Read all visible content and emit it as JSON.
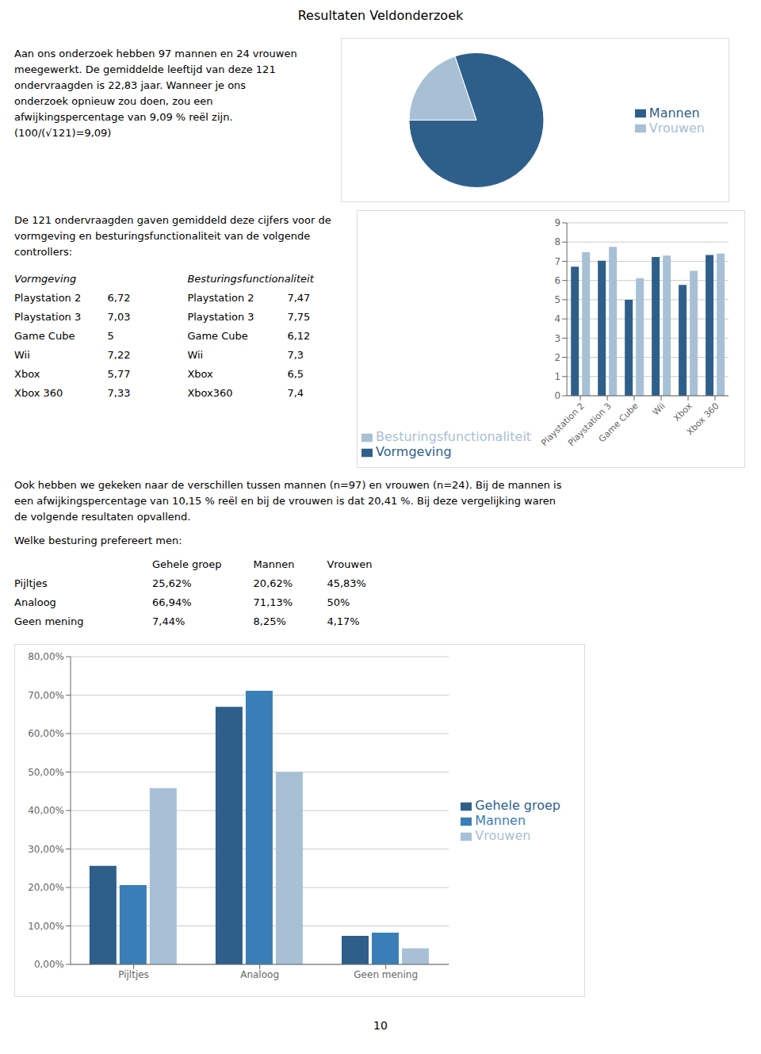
{
  "title": "Resultaten Veldonderzoek",
  "annotations": [
    "10"
  ],
  "chart_data": [
    {
      "type": "pie",
      "categories": [
        "Mannen",
        "Vrouwen"
      ],
      "values": [
        97,
        24
      ],
      "colors": [
        "#2E5F8A",
        "#A8C0D6"
      ],
      "legend": "right",
      "annotations": [
        {
          "lines": [
            "Aan ons onderzoek hebben 97 mannen en 24 vrouwen",
            "meegewerkt. De gemiddelde leeftijd van deze 121",
            "ondervraagden is 22,83 jaar. Wanneer je ons",
            "onderzoek opnieuw zou doen, zou een",
            "afwijkingspercentage van 9,09 % reël zijn.",
            "(100/(√121)=9,09)"
          ]
        }
      ]
    },
    {
      "type": "bar",
      "categories": [
        "Playstation 2",
        "Playstation 3",
        "Game Cube",
        "Wii",
        "Xbox",
        "Xbox 360"
      ],
      "series": [
        {
          "name": "Vormgeving",
          "color": "#2E5F8A",
          "values": [
            6.72,
            7.03,
            5.0,
            7.22,
            5.77,
            7.33
          ]
        },
        {
          "name": "Besturingsfunctionaliteit",
          "color": "#A8C0D6",
          "values": [
            7.47,
            7.75,
            6.12,
            7.3,
            6.5,
            7.4
          ]
        }
      ],
      "ylim": [
        0,
        9
      ],
      "yticks": [
        0,
        1,
        2,
        3,
        4,
        5,
        6,
        7,
        8,
        9
      ],
      "grid": true,
      "legend": "bottom",
      "annotations": [
        {
          "lines": [
            "De 121 ondervraagden gaven gemiddeld deze cijfers voor de",
            "vormgeving en besturingsfunctionaliteit van de volgende",
            "controllers:"
          ]
        },
        {
          "header": [
            "Vormgeving",
            "Besturingsfunctionaliteit"
          ],
          "rows": [
            [
              "Playstation 2",
              "6,72",
              "Playstation 2",
              "7,47"
            ],
            [
              "Playstation 3",
              "7,03",
              "Playstation 3",
              "7,75"
            ],
            [
              "Game Cube",
              "5",
              "Game Cube",
              "6,12"
            ],
            [
              "Wii",
              "7,22",
              "Wii",
              "7,3"
            ],
            [
              "Xbox",
              "5,77",
              "Xbox",
              "6,5"
            ],
            [
              "Xbox 360",
              "7,33",
              "Xbox360",
              "7,4"
            ]
          ]
        }
      ]
    },
    {
      "type": "bar",
      "categories": [
        "Pijltjes",
        "Analoog",
        "Geen mening"
      ],
      "series": [
        {
          "name": "Gehele groep",
          "color": "#2E5F8A",
          "values": [
            0.2562,
            0.6694,
            0.0744
          ]
        },
        {
          "name": "Mannen",
          "color": "#3A7EB8",
          "values": [
            0.2062,
            0.7113,
            0.0825
          ]
        },
        {
          "name": "Vrouwen",
          "color": "#A8C0D6",
          "values": [
            0.4583,
            0.5,
            0.0417
          ]
        }
      ],
      "ylim": [
        0,
        0.8
      ],
      "yticks": [
        {
          "value": 0,
          "label": "0,00%"
        },
        {
          "value": 0.1,
          "label": "10,00%"
        },
        {
          "value": 0.2,
          "label": "20,00%"
        },
        {
          "value": 0.3,
          "label": "30,00%"
        },
        {
          "value": 0.4,
          "label": "40,00%"
        },
        {
          "value": 0.5,
          "label": "50,00%"
        },
        {
          "value": 0.6,
          "label": "60,00%"
        },
        {
          "value": 0.7,
          "label": "70,00%"
        },
        {
          "value": 0.8,
          "label": "80,00%"
        }
      ],
      "grid": true,
      "legend": "right",
      "annotations": [
        {
          "lines": [
            "Ook hebben we gekeken naar de verschillen tussen mannen (n=97) en vrouwen (n=24). Bij de mannen is",
            "een afwijkingspercentage van 10,15 % reël en bij de vrouwen is dat 20,41 %. Bij deze vergelijking waren",
            "de volgende resultaten opvallend."
          ]
        },
        {
          "lines": [
            "Welke besturing prefereert men:"
          ]
        },
        {
          "header": [
            "Gehele groep",
            "Mannen",
            "Vrouwen"
          ],
          "rows": [
            [
              "Pijltjes",
              "25,62%",
              "20,62%",
              "45,83%"
            ],
            [
              "Analoog",
              "66,94%",
              "71,13%",
              "50%"
            ],
            [
              "Geen mening",
              "7,44%",
              "8,25%",
              "4,17%"
            ]
          ]
        }
      ]
    }
  ]
}
